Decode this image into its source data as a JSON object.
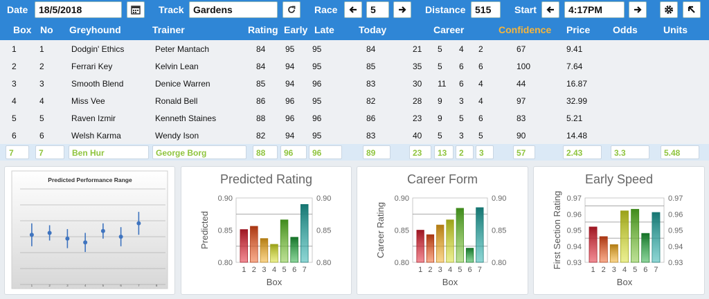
{
  "toolbar": {
    "date_label": "Date",
    "date_value": "18/5/2018",
    "track_label": "Track",
    "track_value": "Gardens",
    "race_label": "Race",
    "race_value": "5",
    "distance_label": "Distance",
    "distance_value": "515",
    "start_label": "Start",
    "start_value": "4:17PM",
    "icons": [
      "calendar-icon",
      "refresh-icon",
      "arrow-left-icon",
      "arrow-right-icon",
      "gear-icon",
      "cursor-icon"
    ]
  },
  "columns": [
    "Box",
    "No",
    "Greyhound",
    "Trainer",
    "Rating",
    "Early",
    "Late",
    "Today",
    "Career",
    "Confidence",
    "Price",
    "Odds",
    "Units"
  ],
  "rows": [
    {
      "box": "1",
      "no": "1",
      "greyhound": "Dodgin' Ethics",
      "trainer": "Peter Mantach",
      "rating": "84",
      "early": "95",
      "late": "95",
      "today": "84",
      "c1": "21",
      "c2": "5",
      "c3": "4",
      "c4": "2",
      "confidence": "67",
      "price": "9.41"
    },
    {
      "box": "2",
      "no": "2",
      "greyhound": "Ferrari Key",
      "trainer": "Kelvin Lean",
      "rating": "84",
      "early": "94",
      "late": "95",
      "today": "85",
      "c1": "35",
      "c2": "5",
      "c3": "6",
      "c4": "6",
      "confidence": "100",
      "price": "7.64"
    },
    {
      "box": "3",
      "no": "3",
      "greyhound": "Smooth Blend",
      "trainer": "Denice Warren",
      "rating": "85",
      "early": "94",
      "late": "96",
      "today": "83",
      "c1": "30",
      "c2": "11",
      "c3": "6",
      "c4": "4",
      "confidence": "44",
      "price": "16.87"
    },
    {
      "box": "4",
      "no": "4",
      "greyhound": "Miss Vee",
      "trainer": "Ronald Bell",
      "rating": "86",
      "early": "96",
      "late": "95",
      "today": "82",
      "c1": "28",
      "c2": "9",
      "c3": "3",
      "c4": "4",
      "confidence": "97",
      "price": "32.99"
    },
    {
      "box": "5",
      "no": "5",
      "greyhound": "Raven Izmir",
      "trainer": "Kenneth Staines",
      "rating": "88",
      "early": "96",
      "late": "96",
      "today": "86",
      "c1": "23",
      "c2": "9",
      "c3": "5",
      "c4": "6",
      "confidence": "83",
      "price": "5.21"
    },
    {
      "box": "6",
      "no": "6",
      "greyhound": "Welsh Karma",
      "trainer": "Wendy Ison",
      "rating": "82",
      "early": "94",
      "late": "95",
      "today": "83",
      "c1": "40",
      "c2": "5",
      "c3": "3",
      "c4": "5",
      "confidence": "90",
      "price": "14.48"
    }
  ],
  "selected": {
    "box": "7",
    "no": "7",
    "greyhound": "Ben Hur",
    "trainer": "George Borg",
    "rating": "88",
    "early": "96",
    "late": "96",
    "today": "89",
    "c1": "23",
    "c2": "13",
    "c3": "2",
    "c4": "3",
    "confidence": "57",
    "price": "2.43",
    "odds": "3.3",
    "units": "5.48"
  },
  "colors": {
    "header": "#2f86d6",
    "accent": "#f6b53c",
    "selected_text": "#8fc43e"
  },
  "chart_data": [
    {
      "type": "scatter",
      "title": "Predicted Performance Range",
      "x": [
        1,
        2,
        3,
        4,
        5,
        6,
        7
      ],
      "values": [
        0.83,
        0.835,
        0.82,
        0.81,
        0.84,
        0.825,
        0.86
      ],
      "error": [
        0.03,
        0.02,
        0.025,
        0.025,
        0.02,
        0.025,
        0.03
      ],
      "xticks": [
        "1",
        "2",
        "3",
        "4",
        "5",
        "6",
        "7",
        "8"
      ],
      "ylim": [
        0.7,
        0.95
      ]
    },
    {
      "type": "bar",
      "title": "Predicted Rating",
      "xlabel": "Box",
      "ylabel": "Predicted",
      "categories": [
        "1",
        "2",
        "3",
        "4",
        "5",
        "6",
        "7"
      ],
      "values": [
        0.851,
        0.856,
        0.837,
        0.828,
        0.866,
        0.839,
        0.89
      ],
      "ylim": [
        0.8,
        0.9
      ],
      "yticks": [
        "0.80",
        "0.85",
        "0.90"
      ],
      "ref_lines": [
        0.875,
        0.825
      ]
    },
    {
      "type": "bar",
      "title": "Career Form",
      "xlabel": "Box",
      "ylabel": "Career Rating",
      "categories": [
        "1",
        "2",
        "3",
        "4",
        "5",
        "6",
        "7"
      ],
      "values": [
        0.85,
        0.843,
        0.858,
        0.866,
        0.884,
        0.822,
        0.885
      ],
      "ylim": [
        0.8,
        0.9
      ],
      "yticks": [
        "0.80",
        "0.85",
        "0.90"
      ],
      "ref_lines": [
        0.875,
        0.825
      ]
    },
    {
      "type": "bar",
      "title": "Early Speed",
      "xlabel": "Box",
      "ylabel": "First Section Rating",
      "categories": [
        "1",
        "2",
        "3",
        "4",
        "5",
        "6",
        "7"
      ],
      "values": [
        0.952,
        0.946,
        0.941,
        0.962,
        0.963,
        0.948,
        0.961
      ],
      "ylim": [
        0.93,
        0.97
      ],
      "yticks": [
        "0.93",
        "0.94",
        "0.95",
        "0.96",
        "0.97"
      ],
      "ref_lines": [
        0.965,
        0.955,
        0.945
      ]
    }
  ]
}
